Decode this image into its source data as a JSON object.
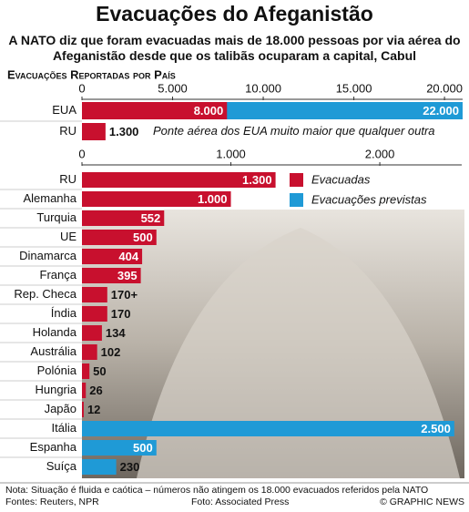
{
  "title": "Evacuações do Afeganistão",
  "subtitle": "A NATO diz que foram evacuadas mais de 18.000 pessoas por via aérea do Afeganistão desde que os talibãs ocuparam a capital, Cabul",
  "section_label": "Evacuações Reportadas por País",
  "chart_data": [
    {
      "type": "bar",
      "orientation": "horizontal",
      "categories": [
        "EUA",
        "RU"
      ],
      "series": [
        {
          "name": "Evacuadas",
          "color": "#c8102e",
          "values": [
            8000,
            1300
          ],
          "value_labels": [
            "8.000",
            "1.300"
          ]
        },
        {
          "name": "Evacuações previstas",
          "color": "#1f9ad6",
          "values": [
            22000,
            null
          ],
          "value_labels": [
            "22.000",
            null
          ]
        }
      ],
      "xlim": [
        0,
        21000
      ],
      "xticks": [
        0,
        {
          "value": 5000,
          "label": "5.000"
        },
        {
          "value": 10000,
          "label": "10.000"
        },
        {
          "value": 15000,
          "label": "15.000"
        },
        {
          "value": 20000,
          "label": "20.000"
        }
      ],
      "annotation": "Ponte aérea dos EUA muito maior que qualquer outra"
    },
    {
      "type": "bar",
      "orientation": "horizontal",
      "categories": [
        "RU",
        "Alemanha",
        "Turquia",
        "UE",
        "Dinamarca",
        "França",
        "Rep. Checa",
        "Índia",
        "Holanda",
        "Austrália",
        "Polónia",
        "Hungria",
        "Japão",
        "Itália",
        "Espanha",
        "Suíça"
      ],
      "series": [
        {
          "name": "Evacuadas",
          "color": "#c8102e",
          "values": [
            1300,
            1000,
            552,
            500,
            404,
            395,
            170,
            170,
            134,
            102,
            50,
            26,
            12,
            null,
            null,
            null
          ],
          "value_labels": [
            "1.300",
            "1.000",
            "552",
            "500",
            "404",
            "395",
            "170+",
            "170",
            "134",
            "102",
            "50",
            "26",
            "12",
            null,
            null,
            null
          ]
        },
        {
          "name": "Evacuações previstas",
          "color": "#1f9ad6",
          "values": [
            null,
            null,
            null,
            null,
            null,
            null,
            null,
            null,
            null,
            null,
            null,
            null,
            null,
            2500,
            500,
            230
          ],
          "value_labels": [
            null,
            null,
            null,
            null,
            null,
            null,
            null,
            null,
            null,
            null,
            null,
            null,
            null,
            "2.500",
            "500",
            "230"
          ]
        }
      ],
      "xlim": [
        0,
        2550
      ],
      "xticks": [
        0,
        {
          "value": 1000,
          "label": "1.000"
        },
        {
          "value": 2000,
          "label": "2.000"
        }
      ],
      "legend": "top-right"
    }
  ],
  "footer": {
    "note": "Nota: Situação é fluida e caótica – números não atingem os 18.000 evacuados referidos pela NATO",
    "sources": "Fontes: Reuters, NPR",
    "photo": "Foto: Associated Press",
    "copyright": "© GRAPHIC NEWS"
  }
}
